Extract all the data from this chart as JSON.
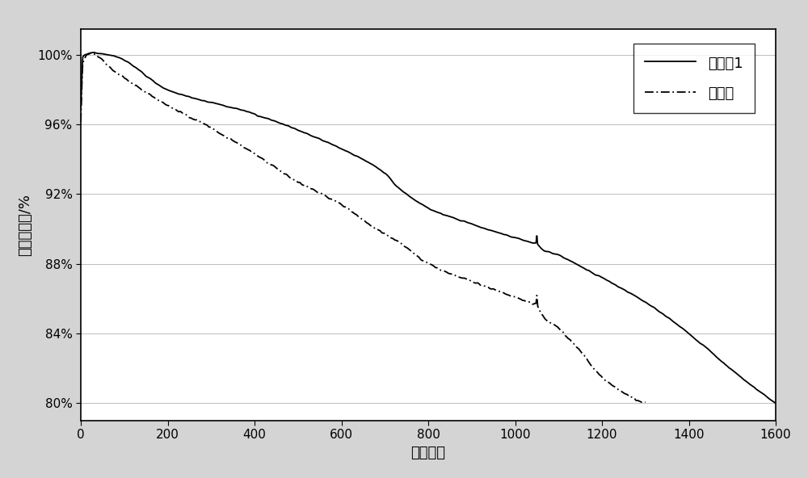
{
  "title": "",
  "xlabel": "循环周数",
  "ylabel": "容量保持率/%",
  "xlim": [
    0,
    1600
  ],
  "ylim": [
    79.0,
    101.5
  ],
  "yticks": [
    80,
    84,
    88,
    92,
    96,
    100
  ],
  "ytick_labels": [
    "80%",
    "84%",
    "88%",
    "92%",
    "96%",
    "100%"
  ],
  "xticks": [
    0,
    200,
    400,
    600,
    800,
    1000,
    1200,
    1400,
    1600
  ],
  "legend_labels": [
    "实施例1",
    "对照组"
  ],
  "line1_color": "#000000",
  "line2_color": "#000000",
  "background_color": "#ffffff",
  "figure_background": "#d4d4d4",
  "fontsize_axis_label": 13,
  "fontsize_tick": 11,
  "fontsize_legend": 13
}
